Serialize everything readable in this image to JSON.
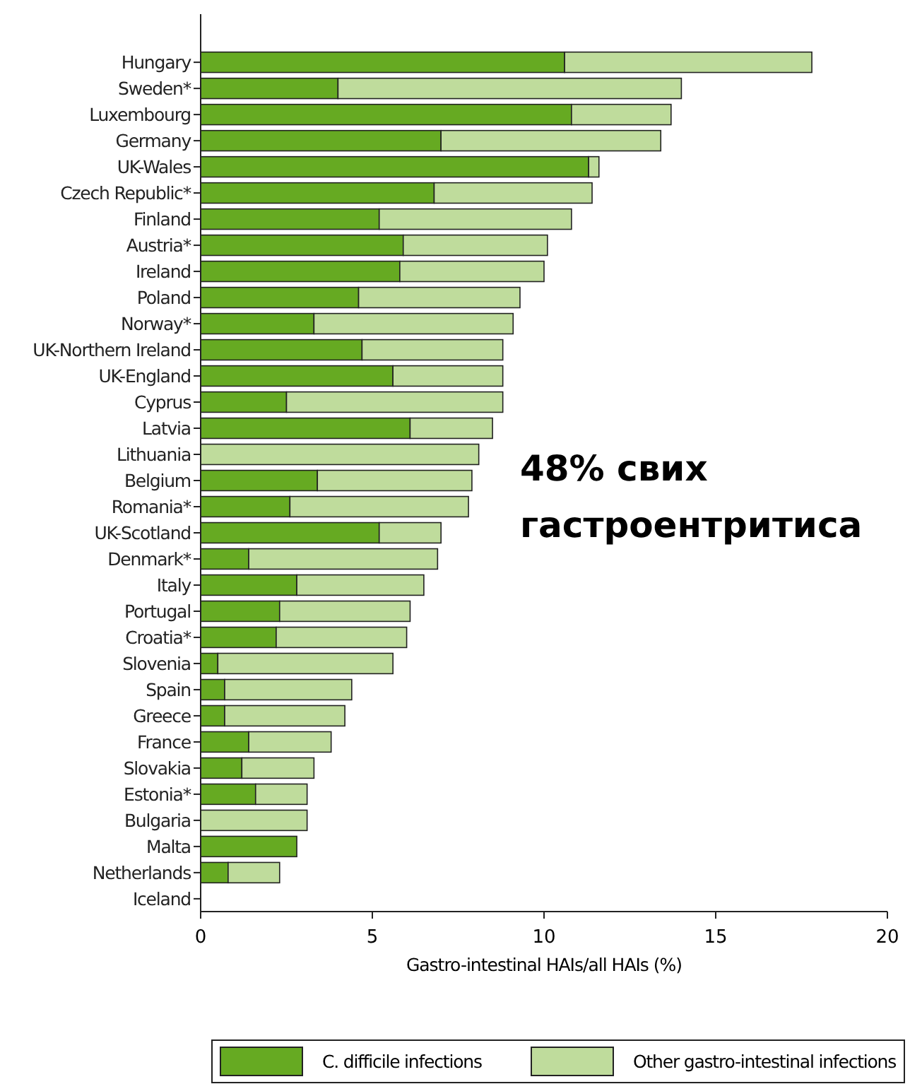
{
  "chart_data": {
    "type": "bar",
    "orientation": "horizontal",
    "stacked": true,
    "categories": [
      "Hungary",
      "Sweden*",
      "Luxembourg",
      "Germany",
      "UK-Wales",
      "Czech Republic*",
      "Finland",
      "Austria*",
      "Ireland",
      "Poland",
      "Norway*",
      "UK-Northern Ireland",
      "UK-England",
      "Cyprus",
      "Latvia",
      "Lithuania",
      "Belgium",
      "Romania*",
      "UK-Scotland",
      "Denmark*",
      "Italy",
      "Portugal",
      "Croatia*",
      "Slovenia",
      "Spain",
      "Greece",
      "France",
      "Slovakia",
      "Estonia*",
      "Bulgaria",
      "Malta",
      "Netherlands",
      "Iceland"
    ],
    "series": [
      {
        "name": "C. difficile infections",
        "color": "#66aa22",
        "values": [
          10.6,
          4.0,
          10.8,
          7.0,
          11.3,
          6.8,
          5.2,
          5.9,
          5.8,
          4.6,
          3.3,
          4.7,
          5.6,
          2.5,
          6.1,
          0,
          3.4,
          2.6,
          5.2,
          1.4,
          2.8,
          2.3,
          2.2,
          0.5,
          0.7,
          0.7,
          1.4,
          1.2,
          1.6,
          0,
          2.8,
          0.8,
          0
        ]
      },
      {
        "name": "Other gastro-intestinal infections",
        "color": "#bfdc9c",
        "values": [
          7.2,
          10.0,
          2.9,
          6.4,
          0.3,
          4.6,
          5.6,
          4.2,
          4.2,
          4.7,
          5.8,
          4.1,
          3.2,
          6.3,
          2.4,
          8.1,
          4.5,
          5.2,
          1.8,
          5.5,
          3.7,
          3.8,
          3.8,
          5.1,
          3.7,
          3.5,
          2.4,
          2.1,
          1.5,
          3.1,
          0,
          1.5,
          0
        ]
      }
    ],
    "xlim": [
      0,
      20
    ],
    "xticks": [
      0,
      5,
      10,
      15,
      20
    ],
    "xlabel": "Gastro-intestinal HAIs/all HAIs (%)",
    "legend": "bottom",
    "grid": false,
    "annotations": [
      "48% свих гастроентритиса"
    ]
  }
}
